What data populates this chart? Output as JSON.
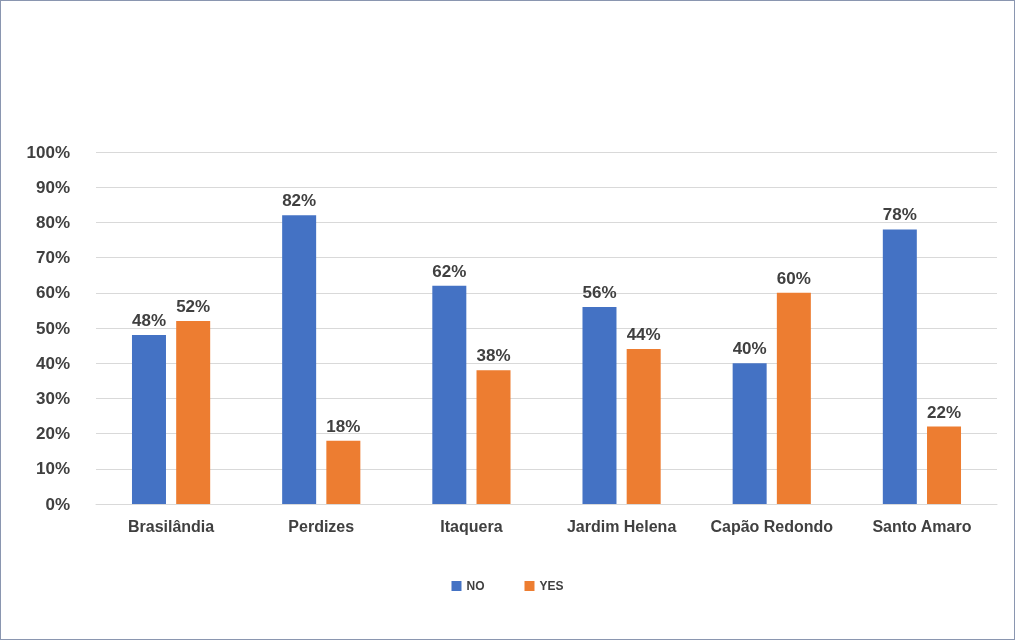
{
  "chart_data": {
    "type": "bar",
    "categories": [
      "Brasilândia",
      "Perdizes",
      "Itaquera",
      "Jardim Helena",
      "Capão Redondo",
      "Santo Amaro"
    ],
    "series": [
      {
        "name": "NO",
        "color": "#4472c4",
        "values": [
          48,
          82,
          62,
          56,
          40,
          78
        ],
        "value_labels": [
          "48%",
          "82%",
          "62%",
          "56%",
          "40%",
          "78%"
        ]
      },
      {
        "name": "YES",
        "color": "#ed7d31",
        "values": [
          52,
          18,
          38,
          44,
          60,
          22
        ],
        "value_labels": [
          "52%",
          "18%",
          "38%",
          "44%",
          "60%",
          "22%"
        ]
      }
    ],
    "ylim": [
      0,
      100
    ],
    "yticks": [
      {
        "value": 0,
        "label": "0%"
      },
      {
        "value": 10,
        "label": "10%"
      },
      {
        "value": 20,
        "label": "20%"
      },
      {
        "value": 30,
        "label": "30%"
      },
      {
        "value": 40,
        "label": "40%"
      },
      {
        "value": 50,
        "label": "50%"
      },
      {
        "value": 60,
        "label": "60%"
      },
      {
        "value": 70,
        "label": "70%"
      },
      {
        "value": 80,
        "label": "80%"
      },
      {
        "value": 90,
        "label": "90%"
      },
      {
        "value": 100,
        "label": "100%"
      }
    ],
    "grid": "y",
    "legend": "bottom"
  }
}
